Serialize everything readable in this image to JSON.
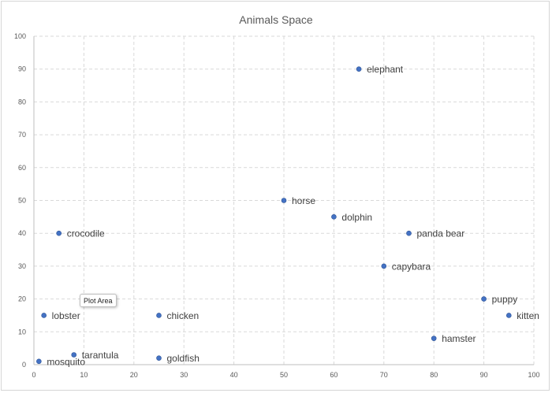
{
  "chart_data": {
    "type": "scatter",
    "title": "Animals Space",
    "xlabel": "",
    "ylabel": "",
    "xlim": [
      0,
      100
    ],
    "ylim": [
      0,
      100
    ],
    "xticks": [
      0,
      10,
      20,
      30,
      40,
      50,
      60,
      70,
      80,
      90,
      100
    ],
    "yticks": [
      0,
      10,
      20,
      30,
      40,
      50,
      60,
      70,
      80,
      90,
      100
    ],
    "grid": true,
    "legend": "none",
    "point_color": "#4472C4",
    "points": [
      {
        "label": "elephant",
        "x": 65,
        "y": 90
      },
      {
        "label": "horse",
        "x": 50,
        "y": 50
      },
      {
        "label": "dolphin",
        "x": 60,
        "y": 45
      },
      {
        "label": "crocodile",
        "x": 5,
        "y": 40
      },
      {
        "label": "panda bear",
        "x": 75,
        "y": 40
      },
      {
        "label": "capybara",
        "x": 70,
        "y": 30
      },
      {
        "label": "puppy",
        "x": 90,
        "y": 20
      },
      {
        "label": "lobster",
        "x": 2,
        "y": 15
      },
      {
        "label": "chicken",
        "x": 25,
        "y": 15
      },
      {
        "label": "kitten",
        "x": 95,
        "y": 15
      },
      {
        "label": "hamster",
        "x": 80,
        "y": 8
      },
      {
        "label": "tarantula",
        "x": 8,
        "y": 3
      },
      {
        "label": "goldfish",
        "x": 25,
        "y": 2
      },
      {
        "label": "mosquito",
        "x": 1,
        "y": 1
      }
    ]
  },
  "tooltip": {
    "text": "Plot Area"
  }
}
